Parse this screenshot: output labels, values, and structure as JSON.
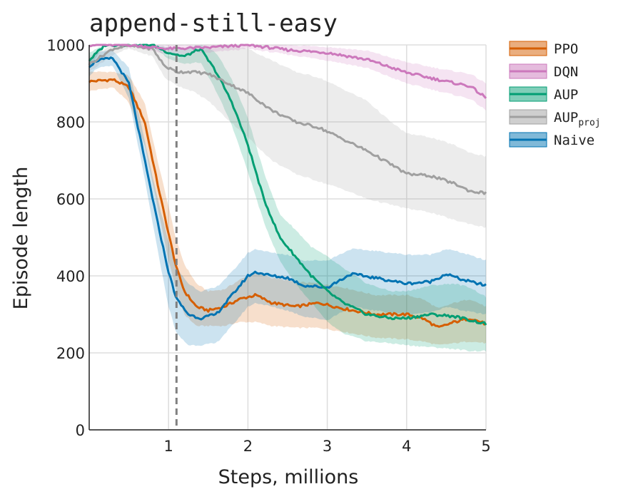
{
  "chart_data": {
    "type": "line",
    "title": "append-still-easy",
    "xlabel": "Steps, millions",
    "ylabel": "Episode length",
    "xlim": [
      0,
      5
    ],
    "ylim": [
      0,
      1000
    ],
    "xticks": [
      1,
      2,
      3,
      4,
      5
    ],
    "yticks": [
      0,
      200,
      400,
      600,
      800,
      1000
    ],
    "grid": true,
    "legend_position": "top-right, outside plot",
    "vline": {
      "x": 1.1,
      "style": "dashed",
      "color": "#808080"
    },
    "series": [
      {
        "name": "PPO",
        "color": "#d55e00",
        "x": [
          0,
          0.3,
          0.5,
          0.7,
          0.85,
          1.0,
          1.1,
          1.2,
          1.35,
          1.5,
          1.7,
          1.9,
          2.1,
          2.3,
          2.6,
          2.9,
          3.2,
          3.6,
          4.0,
          4.2,
          4.4,
          4.6,
          4.8,
          5.0
        ],
        "y": [
          905,
          910,
          890,
          800,
          650,
          510,
          420,
          360,
          320,
          310,
          320,
          340,
          350,
          330,
          320,
          330,
          315,
          300,
          300,
          290,
          265,
          280,
          290,
          275
        ],
        "lower": [
          880,
          890,
          850,
          740,
          590,
          440,
          360,
          300,
          270,
          270,
          270,
          280,
          280,
          270,
          265,
          265,
          255,
          240,
          235,
          230,
          220,
          225,
          230,
          225
        ],
        "upper": [
          930,
          930,
          920,
          850,
          710,
          580,
          490,
          430,
          380,
          360,
          365,
          390,
          410,
          395,
          385,
          380,
          370,
          350,
          350,
          340,
          315,
          330,
          340,
          320
        ]
      },
      {
        "name": "DQN",
        "color": "#cc78bc",
        "x": [
          0,
          0.5,
          1.0,
          1.5,
          2.0,
          2.5,
          3.0,
          3.5,
          4.0,
          4.5,
          4.8,
          5.0
        ],
        "y": [
          1000,
          1000,
          990,
          993,
          1000,
          987,
          980,
          962,
          928,
          905,
          893,
          862
        ],
        "lower": [
          1000,
          998,
          975,
          980,
          990,
          975,
          960,
          940,
          900,
          875,
          860,
          830
        ],
        "upper": [
          1000,
          1000,
          1000,
          1000,
          1000,
          1000,
          995,
          985,
          955,
          935,
          925,
          900
        ]
      },
      {
        "name": "AUP",
        "color": "#029e73",
        "x": [
          0,
          0.2,
          0.5,
          0.8,
          1.0,
          1.2,
          1.4,
          1.6,
          1.8,
          2.0,
          2.2,
          2.4,
          2.6,
          2.8,
          3.0,
          3.2,
          3.5,
          3.8,
          4.0,
          4.3,
          4.6,
          4.8,
          5.0
        ],
        "y": [
          960,
          1000,
          1000,
          1000,
          980,
          970,
          990,
          930,
          850,
          740,
          600,
          500,
          450,
          400,
          360,
          330,
          300,
          290,
          290,
          300,
          295,
          285,
          275
        ],
        "lower": [
          940,
          1000,
          1000,
          995,
          965,
          950,
          955,
          880,
          790,
          670,
          540,
          440,
          380,
          330,
          280,
          250,
          230,
          225,
          220,
          215,
          210,
          205,
          205
        ],
        "upper": [
          980,
          1000,
          1000,
          1000,
          995,
          990,
          1000,
          980,
          910,
          810,
          670,
          560,
          520,
          475,
          450,
          420,
          380,
          360,
          360,
          375,
          380,
          370,
          345
        ]
      },
      {
        "name": "AUP",
        "sub": "proj",
        "color": "#a0a0a0",
        "x": [
          0,
          0.3,
          0.5,
          0.8,
          0.95,
          1.1,
          1.3,
          1.5,
          1.7,
          2.0,
          2.3,
          2.6,
          2.9,
          3.2,
          3.5,
          3.8,
          4.0,
          4.3,
          4.6,
          4.8,
          5.0
        ],
        "y": [
          950,
          990,
          998,
          990,
          945,
          930,
          930,
          925,
          905,
          875,
          830,
          800,
          785,
          755,
          725,
          690,
          665,
          660,
          640,
          620,
          615
        ],
        "lower": [
          930,
          975,
          990,
          970,
          915,
          895,
          880,
          855,
          815,
          760,
          700,
          665,
          645,
          625,
          600,
          585,
          575,
          565,
          545,
          535,
          525
        ],
        "upper": [
          970,
          1000,
          1000,
          1000,
          975,
          965,
          975,
          990,
          1000,
          990,
          960,
          930,
          915,
          885,
          855,
          800,
          770,
          760,
          740,
          720,
          710
        ]
      },
      {
        "name": "Naive",
        "color": "#0173b2",
        "x": [
          0,
          0.1,
          0.3,
          0.5,
          0.7,
          0.85,
          1.0,
          1.1,
          1.25,
          1.4,
          1.6,
          1.8,
          2.0,
          2.1,
          2.3,
          2.5,
          2.7,
          3.0,
          3.3,
          3.6,
          4.0,
          4.3,
          4.5,
          4.7,
          5.0
        ],
        "y": [
          945,
          960,
          965,
          900,
          700,
          550,
          410,
          340,
          300,
          290,
          300,
          350,
          400,
          410,
          400,
          395,
          375,
          370,
          405,
          395,
          380,
          385,
          405,
          390,
          375
        ],
        "lower": [
          920,
          940,
          945,
          860,
          650,
          480,
          320,
          250,
          220,
          220,
          225,
          270,
          320,
          330,
          320,
          310,
          295,
          285,
          320,
          310,
          300,
          305,
          320,
          310,
          300
        ],
        "upper": [
          965,
          980,
          985,
          940,
          750,
          610,
          490,
          420,
          380,
          360,
          370,
          410,
          460,
          470,
          460,
          455,
          440,
          440,
          470,
          465,
          455,
          455,
          470,
          460,
          440
        ]
      }
    ]
  }
}
